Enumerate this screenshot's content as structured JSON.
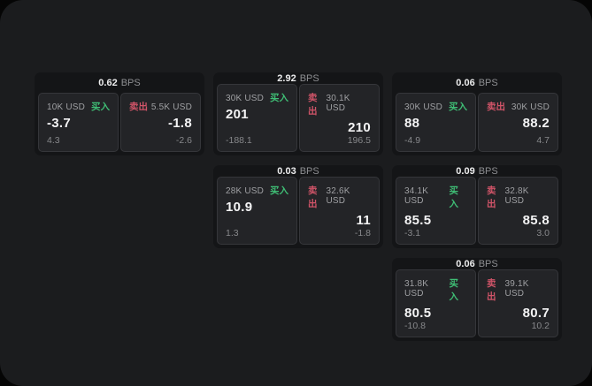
{
  "labels": {
    "bps_unit": "BPS",
    "buy": "买入",
    "sell": "卖出"
  },
  "colors": {
    "page_bg": "#1b1c1e",
    "card_bg": "#141517",
    "panel_bg": "#232427",
    "panel_border": "#35363a",
    "buy_green": "#3fbe75",
    "sell_red": "#d05468",
    "value_white": "#f4f4f5",
    "muted_gray": "#9fa0a3"
  },
  "cards": [
    {
      "row": 1,
      "col": 1,
      "bps": "0.62",
      "buy": {
        "amount": "10K USD",
        "value": "-3.7",
        "delta": "4.3"
      },
      "sell": {
        "amount": "5.5K USD",
        "value": "-1.8",
        "delta": "-2.6"
      }
    },
    {
      "row": 1,
      "col": 2,
      "bps": "2.92",
      "buy": {
        "amount": "30K USD",
        "value": "201",
        "delta": "-188.1"
      },
      "sell": {
        "amount": "30.1K USD",
        "value": "210",
        "delta": "196.5"
      }
    },
    {
      "row": 1,
      "col": 3,
      "bps": "0.06",
      "buy": {
        "amount": "30K USD",
        "value": "88",
        "delta": "-4.9"
      },
      "sell": {
        "amount": "30K USD",
        "value": "88.2",
        "delta": "4.7"
      }
    },
    {
      "row": 2,
      "col": 2,
      "bps": "0.03",
      "buy": {
        "amount": "28K USD",
        "value": "10.9",
        "delta": "1.3"
      },
      "sell": {
        "amount": "32.6K USD",
        "value": "11",
        "delta": "-1.8"
      }
    },
    {
      "row": 2,
      "col": 3,
      "bps": "0.09",
      "buy": {
        "amount": "34.1K USD",
        "value": "85.5",
        "delta": "-3.1"
      },
      "sell": {
        "amount": "32.8K USD",
        "value": "85.8",
        "delta": "3.0"
      }
    },
    {
      "row": 3,
      "col": 3,
      "bps": "0.06",
      "buy": {
        "amount": "31.8K USD",
        "value": "80.5",
        "delta": "-10.8"
      },
      "sell": {
        "amount": "39.1K USD",
        "value": "80.7",
        "delta": "10.2"
      }
    }
  ]
}
